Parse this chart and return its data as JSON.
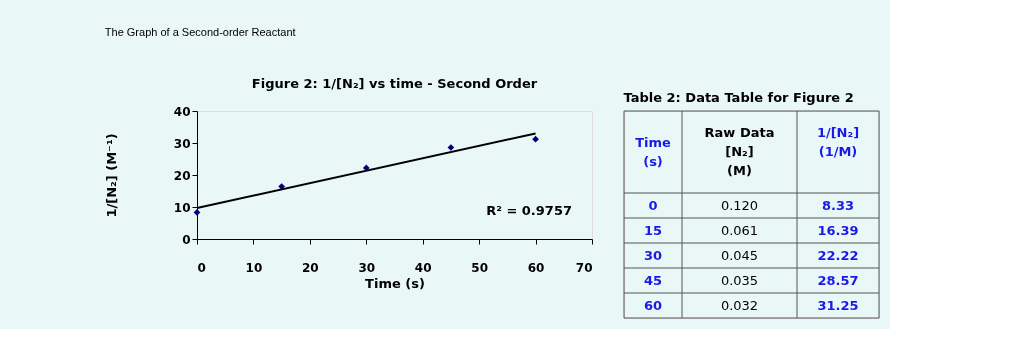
{
  "chart_data": [
    {
      "type": "scatter",
      "title": "Figure 2: 1/[N₂] vs time - Second Order",
      "xlabel": "Time (s)",
      "ylabel": "1/[N₂]  (M⁻¹)",
      "x": [
        0,
        15,
        30,
        45,
        60
      ],
      "series": [
        {
          "color": "#00007f",
          "marker": "diamond",
          "values": [
            8.3,
            16.4,
            22.2,
            28.6,
            31.2
          ]
        },
        {
          "type": "line",
          "color": "#000000",
          "line_style": "solid",
          "x": [
            0,
            60
          ],
          "values": [
            9.7,
            33.0
          ]
        }
      ],
      "xlim": [
        0,
        70
      ],
      "xticks": [
        0,
        10,
        20,
        30,
        40,
        50,
        60,
        70
      ],
      "ylim": [
        0,
        40
      ],
      "yticks": [
        0,
        10,
        20,
        30,
        40
      ],
      "annotations": [
        "The Graph of a Second-order Reactant",
        "R² = 0.9757"
      ]
    },
    {
      "type": "other",
      "title": "Table 2: Data Table for Figure 2",
      "annotations": [
        "Time\n(s)",
        "Raw Data\n[N₂]\n(M)",
        "1/[N₂]\n\n(1/M)",
        "0",
        "0.120",
        "8.33",
        "15",
        "0.061",
        "16.39",
        "30",
        "0.045",
        "22.22",
        "45",
        "0.035",
        "28.57",
        "60",
        "0.032",
        "31.25"
      ]
    }
  ]
}
